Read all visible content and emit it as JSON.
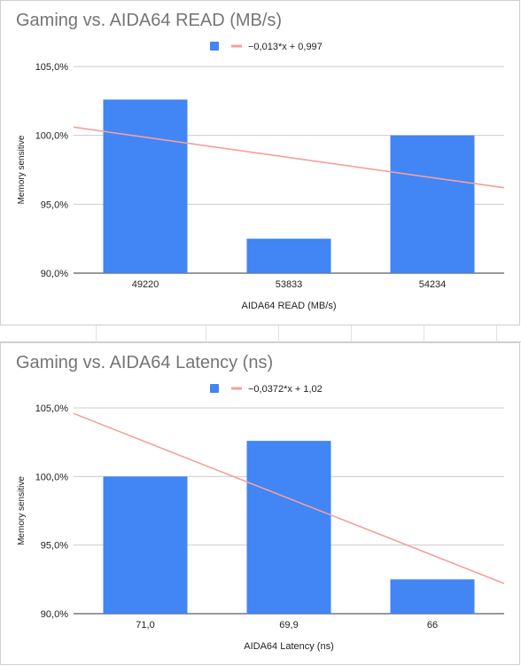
{
  "chart_data": [
    {
      "type": "bar",
      "title": "Gaming vs. AIDA64 READ (MB/s)",
      "xlabel": "AIDA64 READ (MB/s)",
      "ylabel": "Memory sensitive",
      "categories": [
        "49220",
        "53833",
        "54234"
      ],
      "values": [
        102.6,
        92.5,
        100.0
      ],
      "ylim": [
        90,
        105
      ],
      "yticks": [
        "90,0%",
        "95,0%",
        "100,0%",
        "105,0%"
      ],
      "trendline": {
        "label": "−0,013*x + 0,997",
        "start": 100.6,
        "end": 96.2,
        "color": "#f4a09c"
      },
      "bar_color": "#4285f4",
      "grid": true,
      "legend_position": "top"
    },
    {
      "type": "bar",
      "title": "Gaming vs. AIDA64 Latency (ns)",
      "xlabel": "AIDA64 Latency (ns)",
      "ylabel": "Memory sensitive",
      "categories": [
        "71,0",
        "69,9",
        "66"
      ],
      "values": [
        100.0,
        102.6,
        92.5
      ],
      "ylim": [
        90,
        105
      ],
      "yticks": [
        "90,0%",
        "95,0%",
        "100,0%",
        "105,0%"
      ],
      "trendline": {
        "label": "−0,0372*x + 1,02",
        "start": 104.6,
        "end": 92.2,
        "color": "#f4a09c"
      },
      "bar_color": "#4285f4",
      "grid": true,
      "legend_position": "top"
    }
  ]
}
